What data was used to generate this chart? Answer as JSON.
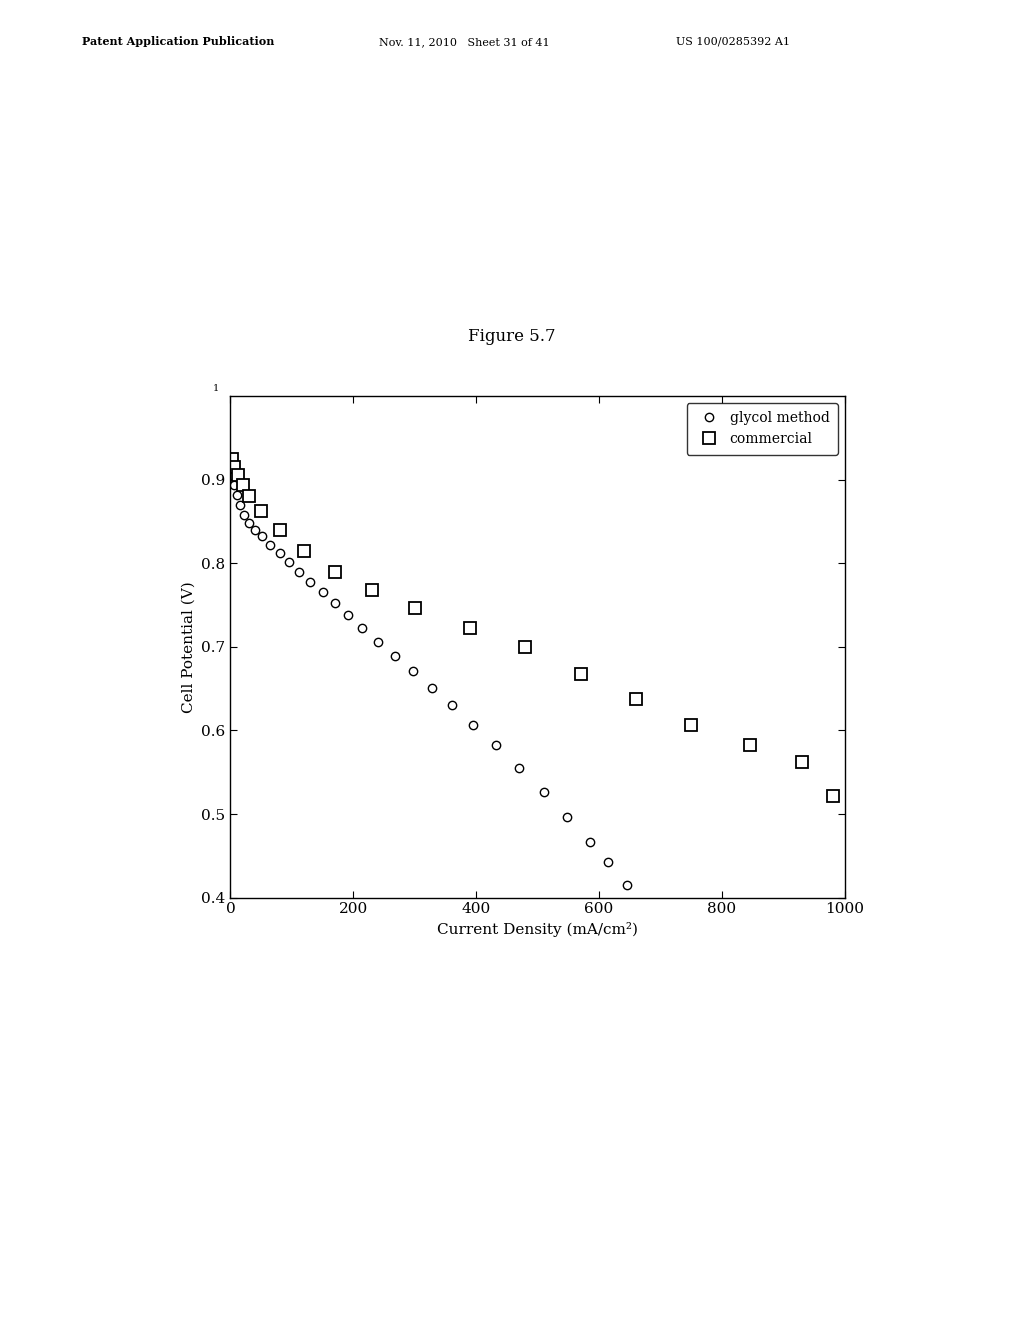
{
  "title": "Figure 5.7",
  "xlabel": "Current Density (mA/cm²)",
  "ylabel": "Cell Potential (V)",
  "xlim": [
    0,
    1000
  ],
  "ylim": [
    0.4,
    1.0
  ],
  "xticks": [
    0,
    200,
    400,
    600,
    800,
    1000
  ],
  "yticks": [
    0.4,
    0.5,
    0.6,
    0.7,
    0.8,
    0.9
  ],
  "glycol_x": [
    2,
    6,
    10,
    16,
    22,
    30,
    40,
    52,
    65,
    80,
    95,
    112,
    130,
    150,
    170,
    192,
    215,
    240,
    268,
    297,
    328,
    360,
    395,
    432,
    470,
    510,
    548,
    585,
    615,
    645
  ],
  "glycol_y": [
    0.905,
    0.893,
    0.882,
    0.87,
    0.858,
    0.848,
    0.84,
    0.832,
    0.822,
    0.812,
    0.802,
    0.79,
    0.778,
    0.765,
    0.752,
    0.738,
    0.722,
    0.706,
    0.689,
    0.671,
    0.651,
    0.63,
    0.607,
    0.582,
    0.555,
    0.526,
    0.496,
    0.466,
    0.442,
    0.415
  ],
  "commercial_x": [
    2,
    6,
    12,
    20,
    30,
    50,
    80,
    120,
    170,
    230,
    300,
    390,
    480,
    570,
    660,
    750,
    845,
    930,
    980
  ],
  "commercial_y": [
    0.925,
    0.915,
    0.905,
    0.893,
    0.88,
    0.862,
    0.84,
    0.815,
    0.79,
    0.768,
    0.747,
    0.722,
    0.7,
    0.668,
    0.638,
    0.606,
    0.582,
    0.562,
    0.522
  ],
  "header_left": "Patent Application Publication",
  "header_mid": "Nov. 11, 2010   Sheet 31 of 41",
  "header_right": "US 100/0285392 A1",
  "background_color": "#ffffff"
}
